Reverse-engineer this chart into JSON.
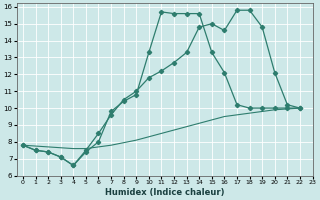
{
  "title": "",
  "xlabel": "Humidex (Indice chaleur)",
  "ylabel": "",
  "background_color": "#cde8e8",
  "grid_color": "#b8d8d8",
  "line_color": "#2e7d6e",
  "xlim": [
    -0.5,
    23
  ],
  "ylim": [
    6,
    16.2
  ],
  "xticks": [
    0,
    1,
    2,
    3,
    4,
    5,
    6,
    7,
    8,
    9,
    10,
    11,
    12,
    13,
    14,
    15,
    16,
    17,
    18,
    19,
    20,
    21,
    22,
    23
  ],
  "yticks": [
    6,
    7,
    8,
    9,
    10,
    11,
    12,
    13,
    14,
    15,
    16
  ],
  "line1_x": [
    0,
    1,
    2,
    3,
    4,
    5,
    6,
    7,
    8,
    9,
    10,
    11,
    12,
    13,
    14,
    15,
    16,
    17,
    18,
    19,
    20,
    21,
    22
  ],
  "line1_y": [
    7.8,
    7.5,
    7.4,
    7.1,
    6.6,
    7.5,
    8.5,
    9.6,
    10.5,
    11.0,
    11.8,
    12.2,
    12.7,
    13.3,
    14.8,
    15.0,
    14.6,
    15.8,
    15.8,
    14.8,
    12.1,
    10.2,
    10.0
  ],
  "line2_x": [
    0,
    1,
    2,
    3,
    4,
    5,
    6,
    7,
    8,
    9,
    10,
    11,
    12,
    13,
    14,
    15,
    16,
    17,
    18,
    19,
    20,
    21,
    22
  ],
  "line2_y": [
    7.8,
    7.5,
    7.4,
    7.1,
    6.6,
    7.4,
    8.0,
    9.8,
    10.4,
    10.8,
    13.3,
    15.7,
    15.6,
    15.6,
    15.6,
    13.3,
    12.1,
    10.2,
    10.0,
    10.0,
    10.0,
    10.0,
    10.0
  ],
  "line3_x": [
    0,
    1,
    2,
    3,
    4,
    5,
    6,
    7,
    8,
    9,
    10,
    11,
    12,
    13,
    14,
    15,
    16,
    17,
    18,
    19,
    20,
    21,
    22
  ],
  "line3_y": [
    7.8,
    7.75,
    7.7,
    7.65,
    7.6,
    7.6,
    7.7,
    7.8,
    7.95,
    8.1,
    8.3,
    8.5,
    8.7,
    8.9,
    9.1,
    9.3,
    9.5,
    9.6,
    9.7,
    9.8,
    9.9,
    9.95,
    10.0
  ]
}
